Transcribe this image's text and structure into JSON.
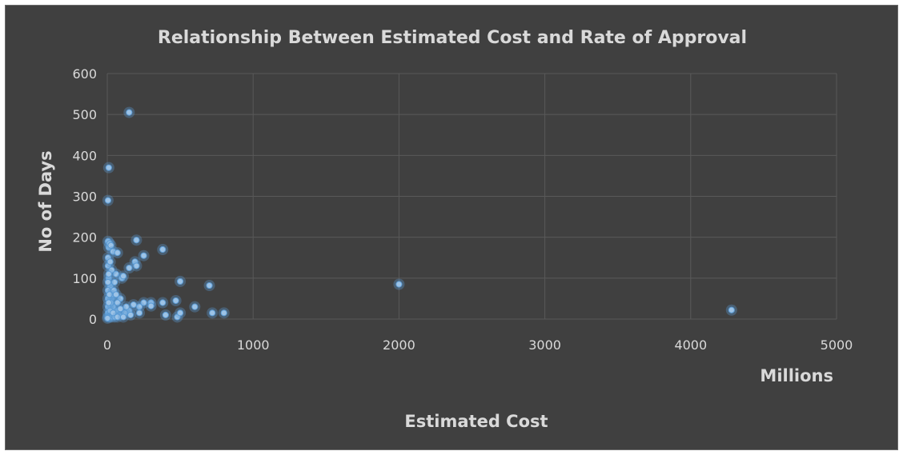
{
  "chart_data": {
    "type": "scatter",
    "title": "Relationship Between Estimated Cost and Rate of Approval",
    "xlabel": "Estimated Cost",
    "x_unit_label": "Millions",
    "ylabel": "No of Days",
    "xlim": [
      0,
      5000
    ],
    "ylim": [
      0,
      600
    ],
    "x_ticks": [
      "0",
      "1000",
      "2000",
      "3000",
      "4000",
      "5000"
    ],
    "y_ticks": [
      "0",
      "100",
      "200",
      "300",
      "400",
      "500",
      "600"
    ],
    "grid": true,
    "legend": "none",
    "marker_color": "#9dc3e6",
    "series": [
      {
        "points": [
          [
            150,
            505
          ],
          [
            10,
            370
          ],
          [
            5,
            290
          ],
          [
            200,
            193
          ],
          [
            380,
            170
          ],
          [
            250,
            155
          ],
          [
            190,
            140
          ],
          [
            200,
            130
          ],
          [
            150,
            125
          ],
          [
            500,
            92
          ],
          [
            700,
            82
          ],
          [
            2000,
            85
          ],
          [
            4280,
            22
          ],
          [
            800,
            15
          ],
          [
            720,
            15
          ],
          [
            600,
            30
          ],
          [
            400,
            10
          ],
          [
            480,
            5
          ],
          [
            500,
            15
          ],
          [
            470,
            45
          ],
          [
            380,
            40
          ],
          [
            300,
            40
          ],
          [
            300,
            32
          ],
          [
            250,
            40
          ],
          [
            220,
            30
          ],
          [
            180,
            35
          ],
          [
            150,
            20
          ],
          [
            220,
            15
          ],
          [
            120,
            15
          ],
          [
            80,
            10
          ],
          [
            60,
            20
          ],
          [
            40,
            30
          ],
          [
            30,
            50
          ],
          [
            20,
            80
          ],
          [
            10,
            100
          ],
          [
            5,
            130
          ],
          [
            5,
            150
          ],
          [
            10,
            175
          ],
          [
            5,
            190
          ],
          [
            15,
            185
          ],
          [
            25,
            180
          ],
          [
            40,
            165
          ],
          [
            70,
            162
          ],
          [
            60,
            110
          ],
          [
            50,
            90
          ],
          [
            30,
            120
          ],
          [
            20,
            140
          ],
          [
            10,
            110
          ],
          [
            5,
            90
          ],
          [
            5,
            70
          ],
          [
            5,
            50
          ],
          [
            5,
            30
          ],
          [
            5,
            15
          ],
          [
            5,
            5
          ],
          [
            15,
            5
          ],
          [
            30,
            5
          ],
          [
            50,
            5
          ],
          [
            20,
            20
          ],
          [
            25,
            40
          ],
          [
            35,
            60
          ],
          [
            45,
            70
          ],
          [
            15,
            60
          ],
          [
            10,
            40
          ],
          [
            100,
            100
          ],
          [
            110,
            105
          ],
          [
            90,
            50
          ],
          [
            70,
            40
          ],
          [
            60,
            60
          ],
          [
            130,
            30
          ],
          [
            90,
            25
          ],
          [
            40,
            15
          ],
          [
            70,
            5
          ],
          [
            110,
            5
          ],
          [
            160,
            10
          ],
          [
            2,
            2
          ]
        ]
      }
    ]
  }
}
